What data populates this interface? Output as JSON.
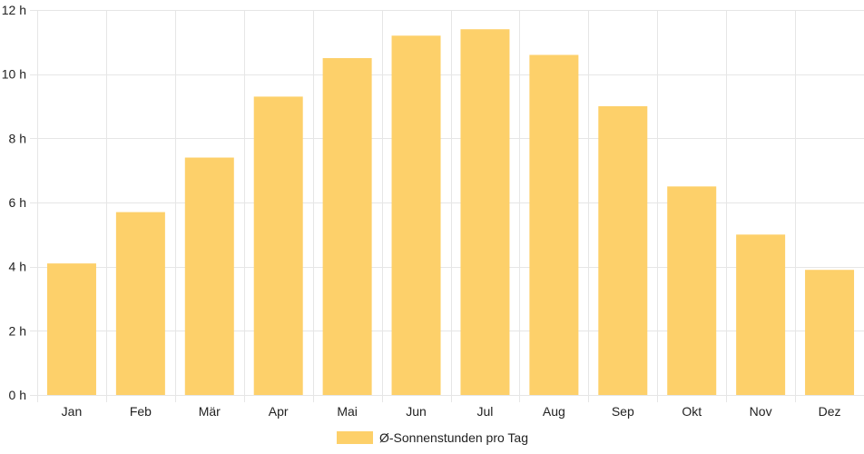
{
  "chart_data": {
    "type": "bar",
    "categories": [
      "Jan",
      "Feb",
      "Mär",
      "Apr",
      "Mai",
      "Jun",
      "Jul",
      "Aug",
      "Sep",
      "Okt",
      "Nov",
      "Dez"
    ],
    "series": [
      {
        "name": "Ø-Sonnenstunden pro Tag",
        "values": [
          4.1,
          5.7,
          7.4,
          9.3,
          10.5,
          11.2,
          11.4,
          10.6,
          9.0,
          6.5,
          5.0,
          3.9
        ],
        "color": "#fdd06a"
      }
    ],
    "ylim": [
      0,
      12
    ],
    "yticks": [
      0,
      2,
      4,
      6,
      8,
      10,
      12
    ],
    "ytick_suffix": " h",
    "grid": true,
    "legend": "bottom",
    "grid_color": "#e6e6e6"
  }
}
